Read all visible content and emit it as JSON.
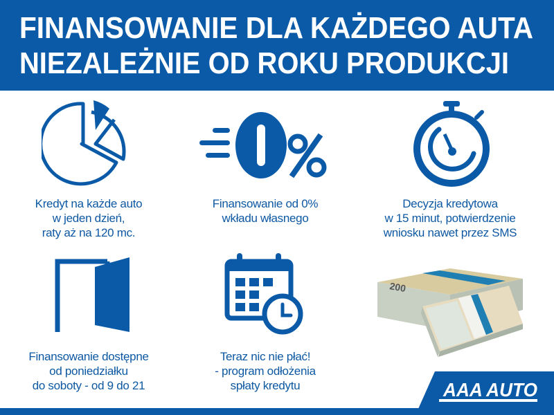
{
  "header": {
    "title_line1": "FINANSOWANIE DLA KAŻDEGO AUTA",
    "title_line2": "NIEZALEŻNIE OD ROKU PRODUKCJI"
  },
  "features": [
    {
      "icon": "pie-chart-icon",
      "lines": [
        "Kredyt na każde auto",
        "w jeden dzień,",
        "raty aż na 120 mc."
      ]
    },
    {
      "icon": "zero-percent-icon",
      "icon_text": "0%",
      "lines": [
        "Finansowanie od 0%",
        "wkładu własnego"
      ]
    },
    {
      "icon": "stopwatch-icon",
      "lines": [
        "Decyzja kredytowa",
        "w 15 minut, potwierdzenie",
        "wniosku nawet przez SMS"
      ]
    },
    {
      "icon": "open-door-icon",
      "lines": [
        "Finansowanie dostępne",
        "od poniedziałku",
        "do soboty - od 9 do 21"
      ]
    },
    {
      "icon": "calendar-clock-icon",
      "lines": [
        "Teraz nic nie płać!",
        "- program odłożenia",
        "spłaty kredytu"
      ]
    }
  ],
  "image": {
    "name": "banknote-stacks",
    "banknote_value": "200"
  },
  "brand": {
    "logo_text": "AAA AUTO"
  },
  "colors": {
    "brand_blue": "#0b5aa8",
    "text_blue": "#0d58a3",
    "white": "#ffffff"
  }
}
